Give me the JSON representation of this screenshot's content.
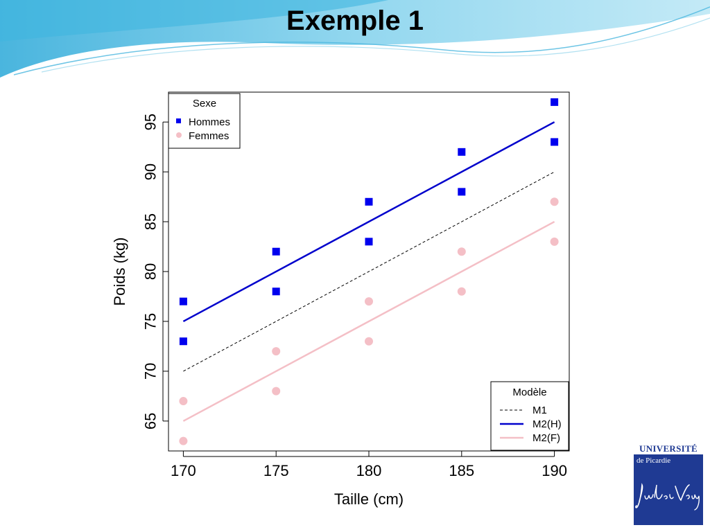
{
  "slide": {
    "title": "Exemple 1",
    "logo": {
      "line1": "UNIVERSITÉ",
      "line2": "de Picardie",
      "signature": "Jules Verne"
    }
  },
  "chart_data": {
    "type": "scatter",
    "title": "",
    "xlabel": "Taille (cm)",
    "ylabel": "Poids (kg)",
    "xlim": [
      169.2,
      190.8
    ],
    "ylim": [
      62,
      98
    ],
    "xticks": [
      170,
      175,
      180,
      185,
      190
    ],
    "yticks": [
      65,
      70,
      75,
      80,
      85,
      90,
      95
    ],
    "grid": false,
    "series": [
      {
        "name": "Hommes",
        "marker": "square",
        "color": "#0000ee",
        "points": [
          {
            "x": 170,
            "y": 77
          },
          {
            "x": 170,
            "y": 73
          },
          {
            "x": 175,
            "y": 82
          },
          {
            "x": 175,
            "y": 78
          },
          {
            "x": 180,
            "y": 87
          },
          {
            "x": 180,
            "y": 83
          },
          {
            "x": 185,
            "y": 92
          },
          {
            "x": 185,
            "y": 88
          },
          {
            "x": 190,
            "y": 97
          },
          {
            "x": 190,
            "y": 93
          }
        ]
      },
      {
        "name": "Femmes",
        "marker": "circle",
        "color": "#f4bfc6",
        "points": [
          {
            "x": 170,
            "y": 67
          },
          {
            "x": 170,
            "y": 63
          },
          {
            "x": 175,
            "y": 72
          },
          {
            "x": 175,
            "y": 68
          },
          {
            "x": 180,
            "y": 77
          },
          {
            "x": 180,
            "y": 73
          },
          {
            "x": 185,
            "y": 82
          },
          {
            "x": 185,
            "y": 78
          },
          {
            "x": 190,
            "y": 87
          },
          {
            "x": 190,
            "y": 83
          }
        ]
      }
    ],
    "lines": [
      {
        "name": "M1",
        "style": "dashed",
        "color": "#000000",
        "x": [
          170,
          190
        ],
        "y": [
          70,
          90
        ]
      },
      {
        "name": "M2(H)",
        "style": "solid",
        "color": "#0000cc",
        "x": [
          170,
          190
        ],
        "y": [
          75,
          95
        ]
      },
      {
        "name": "M2(F)",
        "style": "solid",
        "color": "#f4bfc6",
        "x": [
          170,
          190
        ],
        "y": [
          65,
          85
        ]
      }
    ],
    "legends": [
      {
        "title": "Sexe",
        "placement": "top-left",
        "entries": [
          "Hommes",
          "Femmes"
        ]
      },
      {
        "title": "Modèle",
        "placement": "bottom-right",
        "entries": [
          "M1",
          "M2(H)",
          "M2(F)"
        ]
      }
    ]
  }
}
